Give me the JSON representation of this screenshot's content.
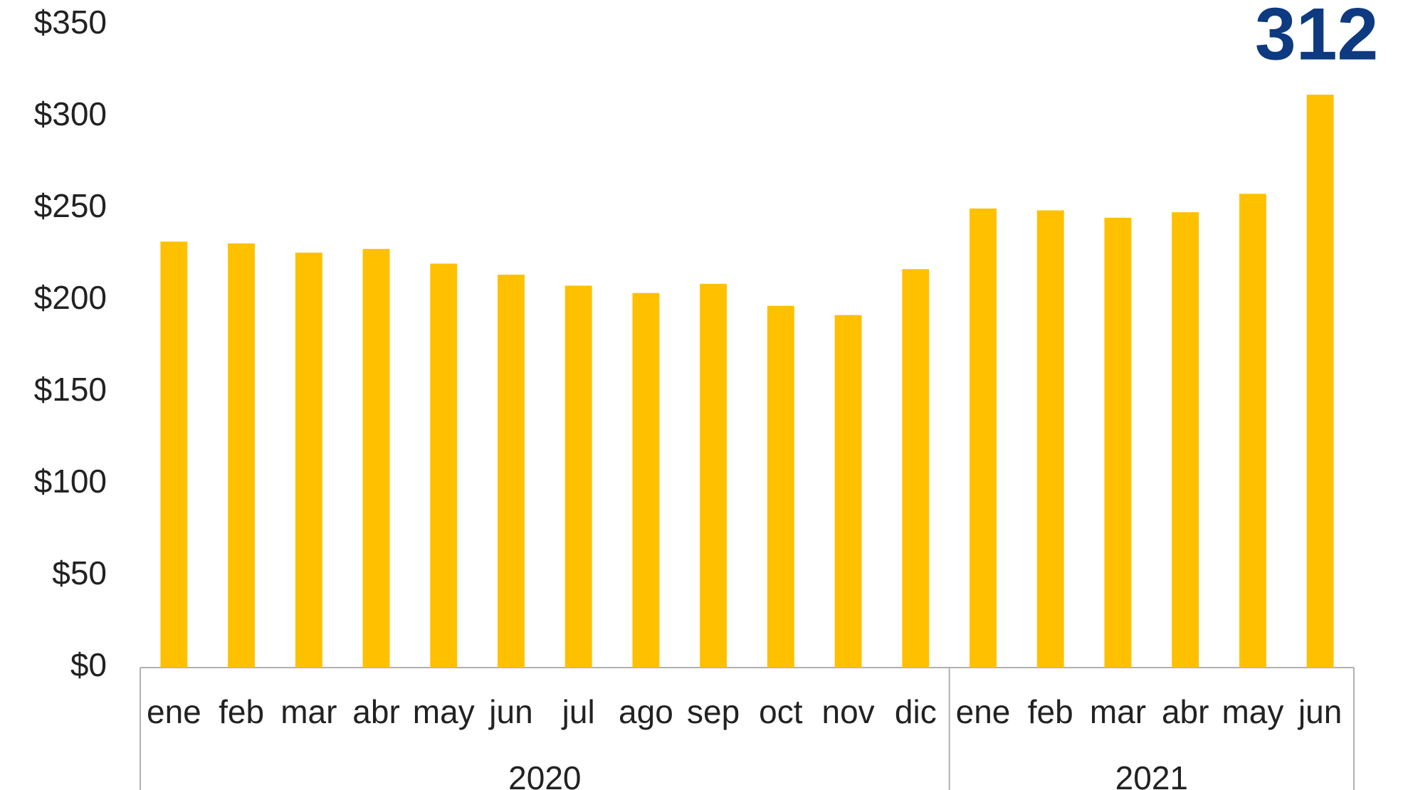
{
  "chart_data": {
    "type": "bar",
    "groups": [
      {
        "label": "2020",
        "categories": [
          "ene",
          "feb",
          "mar",
          "abr",
          "may",
          "jun",
          "jul",
          "ago",
          "sep",
          "oct",
          "nov",
          "dic"
        ]
      },
      {
        "label": "2021",
        "categories": [
          "ene",
          "feb",
          "mar",
          "abr",
          "may",
          "jun"
        ]
      }
    ],
    "values": [
      232,
      231,
      226,
      228,
      220,
      214,
      208,
      204,
      209,
      197,
      192,
      217,
      250,
      249,
      245,
      248,
      258,
      312
    ],
    "color": "#ffc000",
    "label_color": "#0d3a80",
    "ylim": [
      0,
      350
    ],
    "yticks": [
      {
        "value": 0,
        "label": "$0"
      },
      {
        "value": 50,
        "label": "$50"
      },
      {
        "value": 100,
        "label": "$100"
      },
      {
        "value": 150,
        "label": "$150"
      },
      {
        "value": 200,
        "label": "$200"
      },
      {
        "value": 250,
        "label": "$250"
      },
      {
        "value": 300,
        "label": "$300"
      },
      {
        "value": 350,
        "label": "$350"
      }
    ],
    "grid": false
  }
}
